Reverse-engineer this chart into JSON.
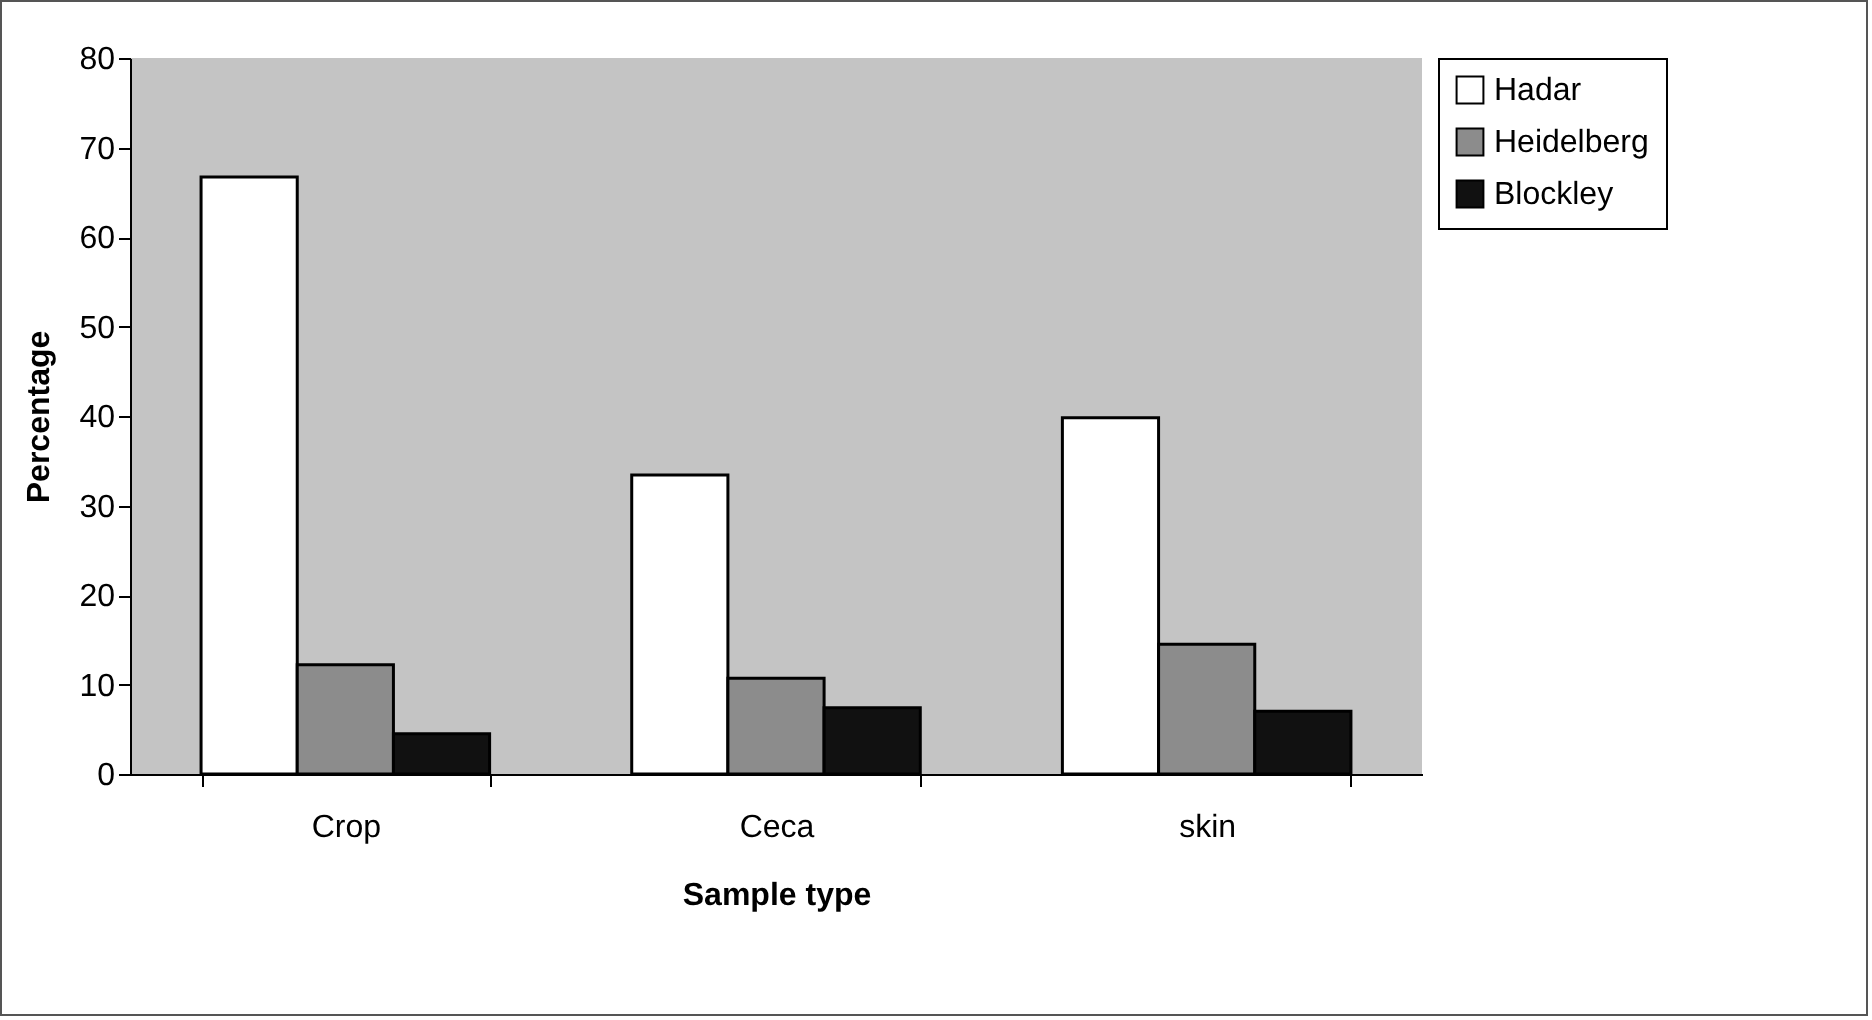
{
  "chart_data": {
    "type": "bar",
    "xlabel": "Sample type",
    "ylabel": "Percentage",
    "categories": [
      "Crop",
      "Ceca",
      "skin"
    ],
    "series": [
      {
        "name": "Hadar",
        "color": "#ffffff",
        "values": [
          66.7,
          33.4,
          39.8
        ]
      },
      {
        "name": "Heidelberg",
        "color": "#8c8c8c",
        "values": [
          12.2,
          10.7,
          14.5
        ]
      },
      {
        "name": "Blockley",
        "color": "#111111",
        "values": [
          4.5,
          7.4,
          7.0
        ]
      }
    ],
    "ylim": [
      0,
      80
    ],
    "yticks": [
      0,
      10,
      20,
      30,
      40,
      50,
      60,
      70,
      80
    ],
    "legend": "right"
  }
}
